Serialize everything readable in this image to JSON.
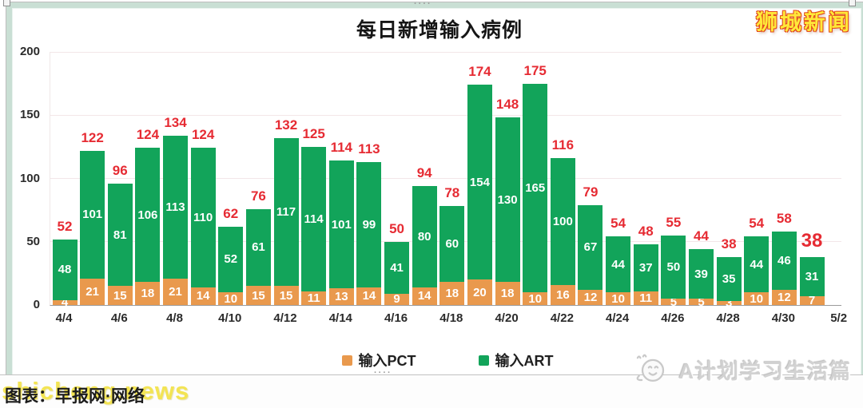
{
  "watermarks": {
    "top_right": "狮城新闻",
    "bottom_left": "shicheng.news",
    "bottom_right": "A计划学习生活篇"
  },
  "footer": {
    "caption": "图表：早报网·网络"
  },
  "chart_data": {
    "type": "bar",
    "stacked": true,
    "title": "每日新增输入病例",
    "categories": [
      "4/4",
      "4/5",
      "4/6",
      "4/7",
      "4/8",
      "4/9",
      "4/10",
      "4/11",
      "4/12",
      "4/13",
      "4/14",
      "4/15",
      "4/16",
      "4/17",
      "4/18",
      "4/19",
      "4/20",
      "4/21",
      "4/22",
      "4/23",
      "4/24",
      "4/25",
      "4/26",
      "4/27",
      "4/28",
      "4/29",
      "4/30",
      "5/1"
    ],
    "series": [
      {
        "name": "输入PCT",
        "color": "#e9994d",
        "values": [
          4,
          21,
          15,
          18,
          21,
          14,
          10,
          15,
          15,
          11,
          13,
          14,
          9,
          14,
          18,
          20,
          18,
          10,
          16,
          12,
          10,
          11,
          5,
          5,
          3,
          10,
          12,
          7
        ]
      },
      {
        "name": "输入ART",
        "color": "#12a45a",
        "values": [
          48,
          101,
          81,
          106,
          113,
          110,
          52,
          61,
          117,
          114,
          101,
          99,
          41,
          80,
          60,
          154,
          130,
          165,
          100,
          67,
          44,
          37,
          50,
          39,
          35,
          44,
          46,
          31
        ]
      }
    ],
    "totals": [
      52,
      122,
      96,
      124,
      134,
      124,
      62,
      76,
      132,
      125,
      114,
      113,
      50,
      94,
      78,
      174,
      148,
      175,
      116,
      79,
      54,
      48,
      55,
      44,
      38,
      54,
      58,
      38
    ],
    "total_label_color": "#e62b33",
    "final_total_emphasized": true,
    "value_label_color": "#ffffff",
    "ylim": [
      0,
      200
    ],
    "yticks": [
      0,
      50,
      100,
      150,
      200
    ],
    "x_tick_labels": [
      "4/4",
      "4/6",
      "4/8",
      "4/10",
      "4/12",
      "4/14",
      "4/16",
      "4/18",
      "4/20",
      "4/22",
      "4/24",
      "4/26",
      "4/28",
      "4/30",
      "5/2"
    ],
    "grid": "horizontal",
    "legend_position": "bottom-center"
  }
}
